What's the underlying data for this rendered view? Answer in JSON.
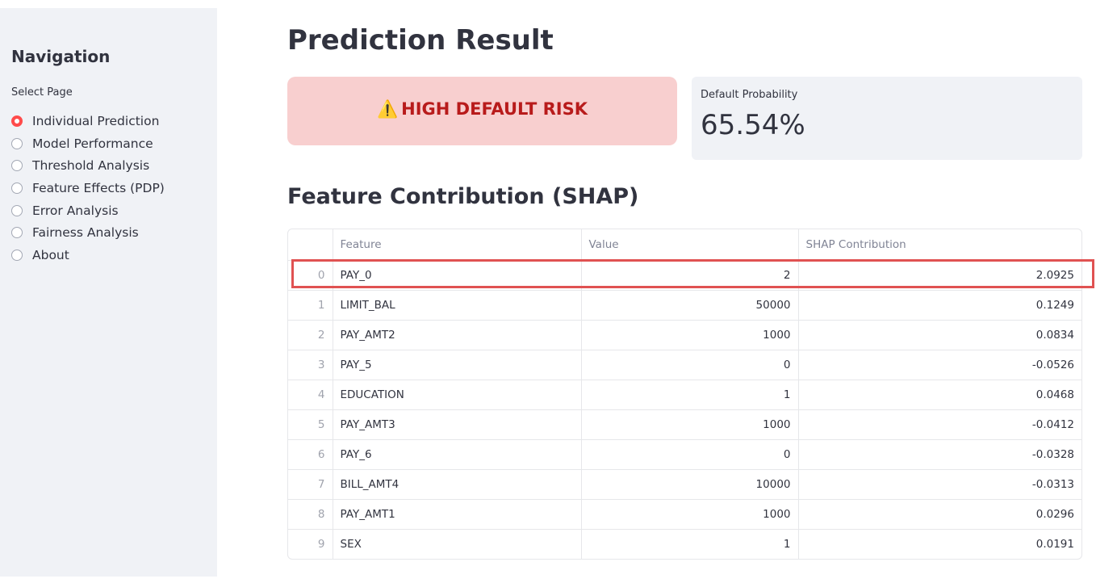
{
  "sidebar": {
    "title": "Navigation",
    "select_label": "Select Page",
    "items": [
      {
        "label": "Individual Prediction",
        "selected": true
      },
      {
        "label": "Model Performance",
        "selected": false
      },
      {
        "label": "Threshold Analysis",
        "selected": false
      },
      {
        "label": "Feature Effects (PDP)",
        "selected": false
      },
      {
        "label": "Error Analysis",
        "selected": false
      },
      {
        "label": "Fairness Analysis",
        "selected": false
      },
      {
        "label": "About",
        "selected": false
      }
    ]
  },
  "main": {
    "title": "Prediction Result",
    "risk_alert": {
      "icon": "warning-icon",
      "text": "HIGH DEFAULT RISK"
    },
    "metric": {
      "label": "Default Probability",
      "value": "65.54%"
    },
    "section_title": "Feature Contribution (SHAP)",
    "table": {
      "columns": [
        "",
        "Feature",
        "Value",
        "SHAP Contribution"
      ],
      "rows": [
        {
          "index": "0",
          "feature": "PAY_0",
          "value": "2",
          "shap": "2.0925"
        },
        {
          "index": "1",
          "feature": "LIMIT_BAL",
          "value": "50000",
          "shap": "0.1249"
        },
        {
          "index": "2",
          "feature": "PAY_AMT2",
          "value": "1000",
          "shap": "0.0834"
        },
        {
          "index": "3",
          "feature": "PAY_5",
          "value": "0",
          "shap": "-0.0526"
        },
        {
          "index": "4",
          "feature": "EDUCATION",
          "value": "1",
          "shap": "0.0468"
        },
        {
          "index": "5",
          "feature": "PAY_AMT3",
          "value": "1000",
          "shap": "-0.0412"
        },
        {
          "index": "6",
          "feature": "PAY_6",
          "value": "0",
          "shap": "-0.0328"
        },
        {
          "index": "7",
          "feature": "BILL_AMT4",
          "value": "10000",
          "shap": "-0.0313"
        },
        {
          "index": "8",
          "feature": "PAY_AMT1",
          "value": "1000",
          "shap": "0.0296"
        },
        {
          "index": "9",
          "feature": "SEX",
          "value": "1",
          "shap": "0.0191"
        }
      ]
    }
  },
  "colors": {
    "accent": "#ff4b4b",
    "alert_bg": "#f8cfcf",
    "alert_text": "#b81b1b",
    "highlight_border": "#e05252",
    "sidebar_bg": "#f0f2f6"
  }
}
